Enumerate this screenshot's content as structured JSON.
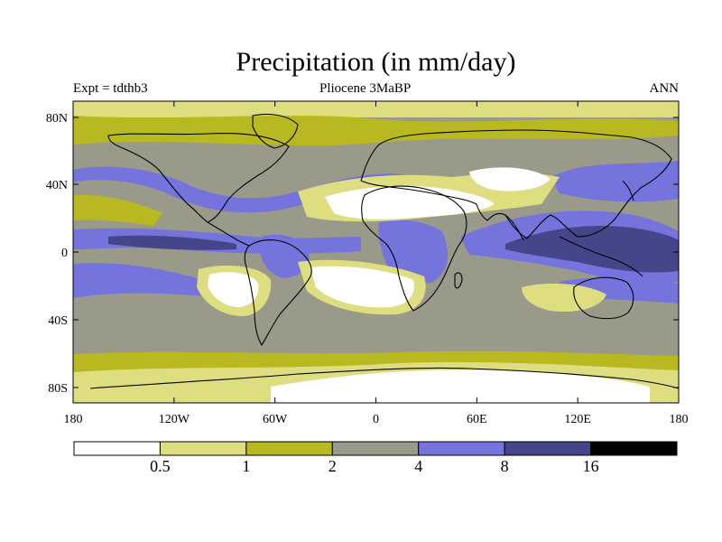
{
  "title": "Precipitation (in mm/day)",
  "experiment": "Expt = tdthb3",
  "period": "Pliocene   3MaBP",
  "season": "ANN",
  "lat_labels": [
    "80N",
    "40N",
    "0",
    "40S",
    "80S"
  ],
  "lon_labels": [
    "180",
    "120W",
    "60W",
    "0",
    "60E",
    "120E",
    "180"
  ],
  "colorbar": {
    "labels": [
      "0.5",
      "1",
      "2",
      "4",
      "8",
      "16"
    ],
    "colors": [
      "#ffffff",
      "#dede80",
      "#b8b820",
      "#9a9a8a",
      "#7474dc",
      "#45458a",
      "#000000"
    ]
  },
  "palette": {
    "dry": "#ffffff",
    "light_yellow": "#dede80",
    "olive": "#b8b820",
    "gray": "#9a9a8a",
    "blue": "#7474dc",
    "dark_blue": "#45458a"
  }
}
